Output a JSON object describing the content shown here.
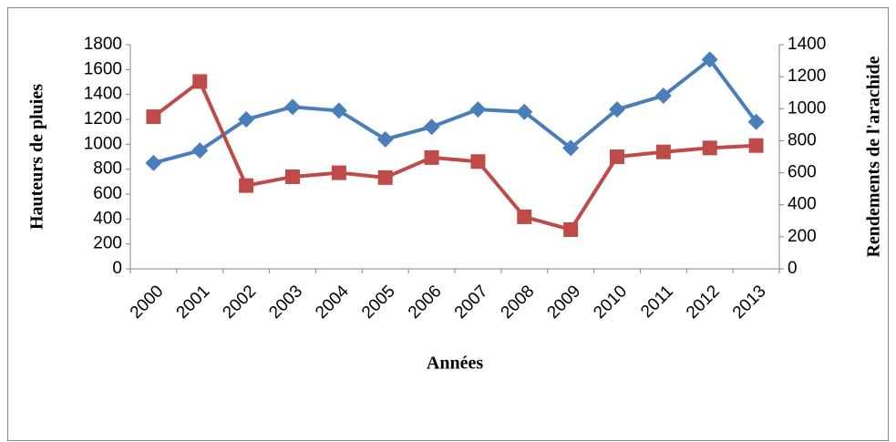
{
  "chart_data": {
    "type": "line",
    "x_label": "Années",
    "y_label": "Hauteurs de pluies",
    "y2_label": "Rendements de l'arachide",
    "categories": [
      "2000",
      "2001",
      "2002",
      "2003",
      "2004",
      "2005",
      "2006",
      "2007",
      "2008",
      "2009",
      "2010",
      "2011",
      "2012",
      "2013"
    ],
    "series": [
      {
        "color": "#4a7ebb",
        "marker": "diamond",
        "values": [
          850,
          950,
          1200,
          1300,
          1270,
          1040,
          1140,
          1280,
          1260,
          970,
          1280,
          1390,
          1680,
          1180
        ]
      },
      {
        "color": "#be4b48",
        "marker": "square",
        "axis": "y2",
        "values": [
          950,
          1170,
          520,
          575,
          600,
          570,
          695,
          670,
          325,
          245,
          700,
          730,
          755,
          770
        ]
      }
    ],
    "ylim": [
      0,
      1800
    ],
    "yticks": [
      0,
      200,
      400,
      600,
      800,
      1000,
      1200,
      1400,
      1600,
      1800
    ],
    "y2lim": [
      0,
      1400
    ],
    "y2ticks": [
      0,
      200,
      400,
      600,
      800,
      1000,
      1200,
      1400
    ]
  }
}
